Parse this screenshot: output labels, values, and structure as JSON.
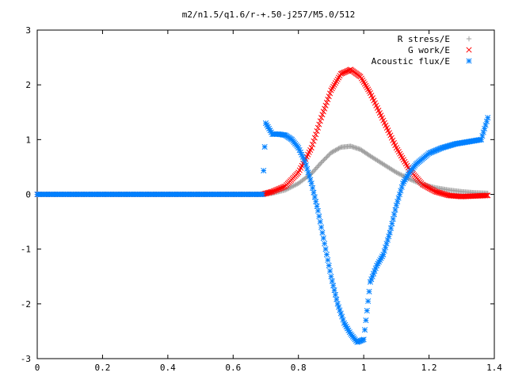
{
  "chart_data": {
    "type": "scatter",
    "title": "m2/n1.5/q1.6/r-+.50-j257/M5.0/512",
    "xlabel": "",
    "ylabel": "",
    "xlim": [
      0,
      1.4
    ],
    "ylim": [
      -3,
      3
    ],
    "xticks": [
      "0",
      "0.2",
      "0.4",
      "0.6",
      "0.8",
      "1",
      "1.2",
      "1.4"
    ],
    "yticks": [
      "3",
      "2",
      "1",
      "0",
      "-1",
      "-2",
      "-3"
    ],
    "xtick_values": [
      0,
      0.2,
      0.4,
      0.6,
      0.8,
      1.0,
      1.2,
      1.4
    ],
    "ytick_values": [
      3,
      2,
      1,
      0,
      -1,
      -2,
      -3
    ],
    "legend_position": "top-right",
    "grid": false,
    "series": [
      {
        "name": "R stress/E",
        "marker": "plus",
        "color": "#a0a0a0",
        "x": [
          0,
          0.1,
          0.2,
          0.3,
          0.4,
          0.5,
          0.6,
          0.69,
          0.72,
          0.76,
          0.8,
          0.84,
          0.87,
          0.9,
          0.93,
          0.96,
          0.99,
          1.02,
          1.06,
          1.1,
          1.14,
          1.18,
          1.22,
          1.26,
          1.3,
          1.34,
          1.38
        ],
        "y": [
          0,
          0,
          0,
          0,
          0,
          0,
          0,
          0,
          0.02,
          0.08,
          0.2,
          0.38,
          0.58,
          0.76,
          0.86,
          0.88,
          0.82,
          0.7,
          0.55,
          0.4,
          0.28,
          0.18,
          0.12,
          0.08,
          0.05,
          0.03,
          0.02
        ]
      },
      {
        "name": "G work/E",
        "marker": "cross",
        "color": "#ff0000",
        "x": [
          0,
          0.1,
          0.2,
          0.3,
          0.4,
          0.5,
          0.6,
          0.69,
          0.72,
          0.76,
          0.8,
          0.84,
          0.87,
          0.9,
          0.93,
          0.96,
          0.99,
          1.02,
          1.06,
          1.1,
          1.14,
          1.18,
          1.22,
          1.26,
          1.3,
          1.34,
          1.38
        ],
        "y": [
          0,
          0,
          0,
          0,
          0,
          0,
          0,
          0,
          0.05,
          0.15,
          0.4,
          0.85,
          1.4,
          1.9,
          2.2,
          2.28,
          2.15,
          1.85,
          1.35,
          0.85,
          0.45,
          0.18,
          0.05,
          -0.02,
          -0.04,
          -0.03,
          -0.02
        ]
      },
      {
        "name": "Acoustic flux/E",
        "marker": "star",
        "color": "#0080ff",
        "x": [
          0,
          0.1,
          0.2,
          0.3,
          0.4,
          0.5,
          0.6,
          0.69,
          0.7,
          0.72,
          0.74,
          0.76,
          0.78,
          0.8,
          0.82,
          0.84,
          0.86,
          0.88,
          0.9,
          0.92,
          0.94,
          0.96,
          0.98,
          1.0,
          1.02,
          1.04,
          1.06,
          1.08,
          1.1,
          1.12,
          1.14,
          1.16,
          1.2,
          1.24,
          1.28,
          1.32,
          1.36,
          1.38
        ],
        "y": [
          0,
          0,
          0,
          0,
          0,
          0,
          0,
          0,
          1.3,
          1.1,
          1.1,
          1.08,
          1.0,
          0.85,
          0.6,
          0.2,
          -0.3,
          -0.9,
          -1.5,
          -2.0,
          -2.35,
          -2.55,
          -2.7,
          -2.65,
          -1.6,
          -1.3,
          -1.1,
          -0.7,
          -0.2,
          0.2,
          0.4,
          0.55,
          0.75,
          0.85,
          0.92,
          0.96,
          1.0,
          1.4
        ]
      }
    ]
  }
}
